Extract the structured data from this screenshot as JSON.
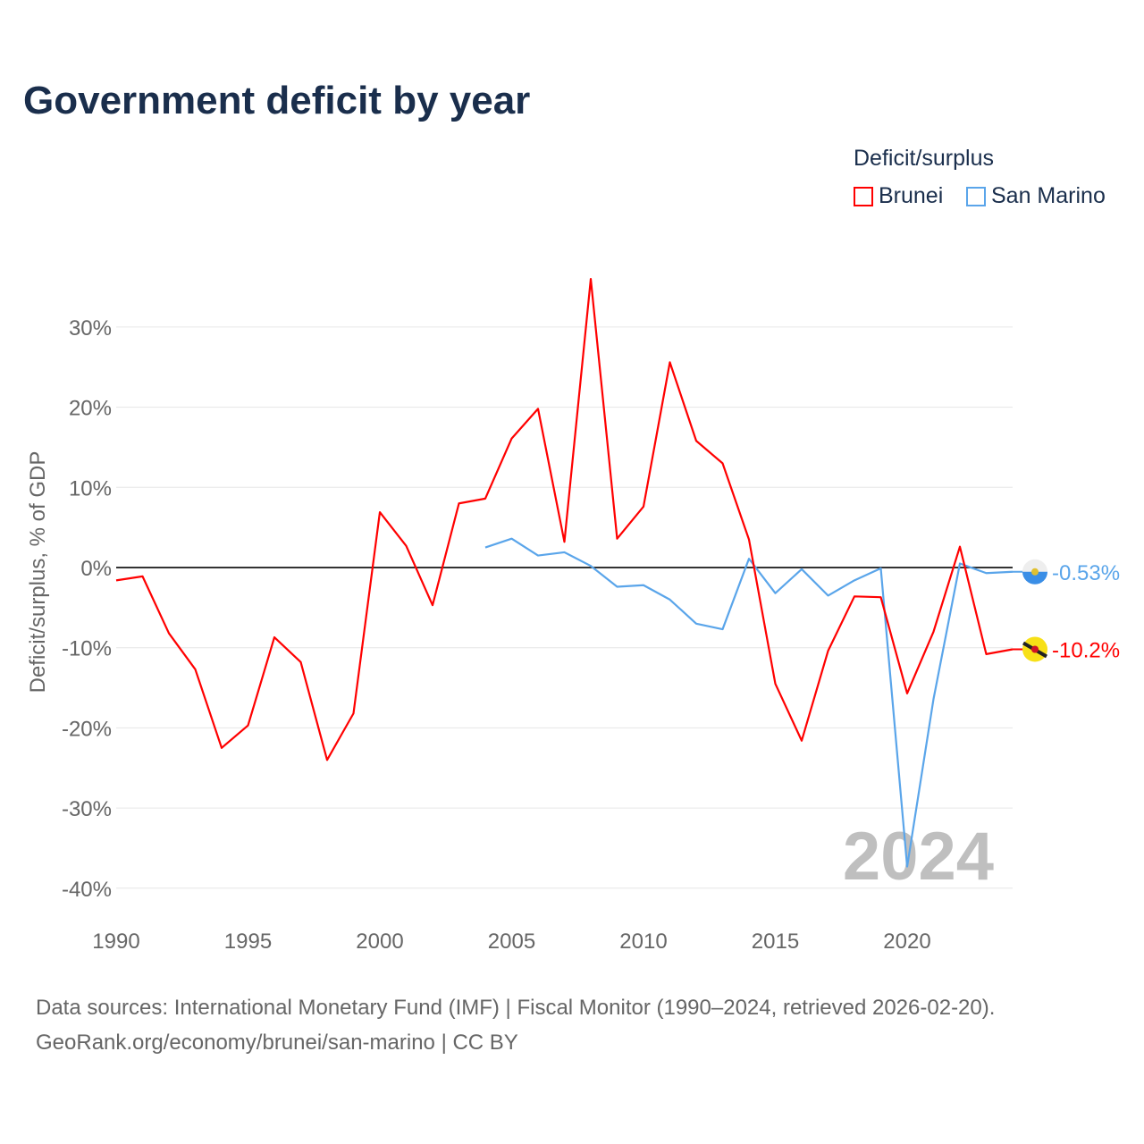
{
  "title": "Government deficit by year",
  "legend": {
    "title": "Deficit/surplus",
    "items": [
      "Brunei",
      "San Marino"
    ]
  },
  "source": {
    "line1": "Data sources: International Monetary Fund (IMF) | Fiscal Monitor (1990–2024, retrieved 2026-02-20).",
    "line2": "GeoRank.org/economy/brunei/san-marino | CC BY"
  },
  "year_watermark": "2024",
  "chart_data": {
    "type": "line",
    "title": "Government deficit by year",
    "xlabel": "",
    "ylabel": "Deficit/surplus, % of GDP",
    "xlim": [
      1990,
      2024
    ],
    "ylim": [
      -40,
      36
    ],
    "xticks": [
      1990,
      1995,
      2000,
      2005,
      2010,
      2015,
      2020
    ],
    "xtick_labels": [
      "1990",
      "1995",
      "2000",
      "2005",
      "2010",
      "2015",
      "2020"
    ],
    "yticks": [
      30,
      20,
      10,
      0,
      -10,
      -20,
      -30,
      -40
    ],
    "ytick_labels": [
      "30%",
      "20%",
      "10%",
      "0%",
      "-10%",
      "-20%",
      "-30%",
      "-40%"
    ],
    "grid": true,
    "legend_position": "top-right",
    "series": [
      {
        "name": "Brunei",
        "color": "#ff0000",
        "end_label": "-10.2%",
        "x": [
          1990,
          1991,
          1992,
          1993,
          1994,
          1995,
          1996,
          1997,
          1998,
          1999,
          2000,
          2001,
          2002,
          2003,
          2004,
          2005,
          2006,
          2007,
          2008,
          2009,
          2010,
          2011,
          2012,
          2013,
          2014,
          2015,
          2016,
          2017,
          2018,
          2019,
          2020,
          2021,
          2022,
          2023,
          2024
        ],
        "y": [
          -1.6,
          -1.1,
          -8.2,
          -12.7,
          -22.5,
          -19.7,
          -8.7,
          -11.8,
          -24.0,
          -18.2,
          6.9,
          2.7,
          -4.7,
          8.0,
          8.6,
          16.1,
          19.8,
          3.2,
          36.0,
          3.6,
          7.6,
          25.6,
          15.8,
          13.0,
          3.5,
          -14.5,
          -21.6,
          -10.4,
          -3.6,
          -3.7,
          -15.7,
          -8.0,
          2.6,
          -10.8,
          -10.2
        ]
      },
      {
        "name": "San Marino",
        "color": "#5aa5ea",
        "end_label": "-0.53%",
        "x": [
          2004,
          2005,
          2006,
          2007,
          2008,
          2009,
          2010,
          2011,
          2012,
          2013,
          2014,
          2015,
          2016,
          2017,
          2018,
          2019,
          2020,
          2021,
          2022,
          2023,
          2024
        ],
        "y": [
          2.5,
          3.6,
          1.5,
          1.9,
          0.2,
          -2.4,
          -2.2,
          -4.0,
          -7.0,
          -7.7,
          1.1,
          -3.2,
          -0.2,
          -3.5,
          -1.6,
          -0.1,
          -37.3,
          -16.4,
          0.5,
          -0.7,
          -0.53
        ]
      }
    ]
  }
}
